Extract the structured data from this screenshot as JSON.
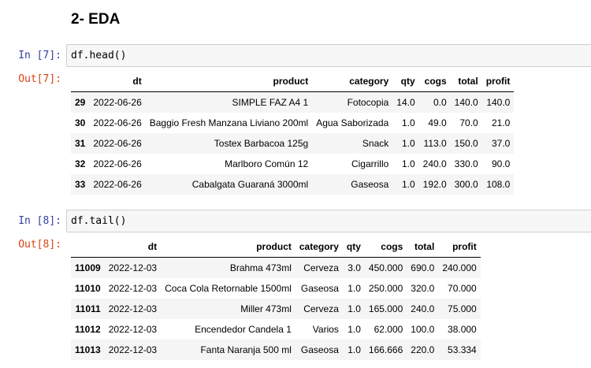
{
  "section_heading": "2- EDA",
  "cell1": {
    "in_prompt": "In [7]:",
    "code": "df.head()",
    "out_prompt": "Out[7]:",
    "columns": [
      "",
      "dt",
      "product",
      "category",
      "qty",
      "cogs",
      "total",
      "profit"
    ],
    "rows": [
      [
        "29",
        "2022-06-26",
        "SIMPLE FAZ A4 1",
        "Fotocopia",
        "14.0",
        "0.0",
        "140.0",
        "140.0"
      ],
      [
        "30",
        "2022-06-26",
        "Baggio Fresh Manzana Liviano 200ml",
        "Agua Saborizada",
        "1.0",
        "49.0",
        "70.0",
        "21.0"
      ],
      [
        "31",
        "2022-06-26",
        "Tostex Barbacoa 125g",
        "Snack",
        "1.0",
        "113.0",
        "150.0",
        "37.0"
      ],
      [
        "32",
        "2022-06-26",
        "Marlboro Común 12",
        "Cigarrillo",
        "1.0",
        "240.0",
        "330.0",
        "90.0"
      ],
      [
        "33",
        "2022-06-26",
        "Cabalgata Guaraná 3000ml",
        "Gaseosa",
        "1.0",
        "192.0",
        "300.0",
        "108.0"
      ]
    ]
  },
  "cell2": {
    "in_prompt": "In [8]:",
    "code": "df.tail()",
    "out_prompt": "Out[8]:",
    "columns": [
      "",
      "dt",
      "product",
      "category",
      "qty",
      "cogs",
      "total",
      "profit"
    ],
    "rows": [
      [
        "11009",
        "2022-12-03",
        "Brahma 473ml",
        "Cerveza",
        "3.0",
        "450.000",
        "690.0",
        "240.000"
      ],
      [
        "11010",
        "2022-12-03",
        "Coca Cola Retornable 1500ml",
        "Gaseosa",
        "1.0",
        "250.000",
        "320.0",
        "70.000"
      ],
      [
        "11011",
        "2022-12-03",
        "Miller 473ml",
        "Cerveza",
        "1.0",
        "165.000",
        "240.0",
        "75.000"
      ],
      [
        "11012",
        "2022-12-03",
        "Encendedor Candela 1",
        "Varios",
        "1.0",
        "62.000",
        "100.0",
        "38.000"
      ],
      [
        "11013",
        "2022-12-03",
        "Fanta Naranja 500 ml",
        "Gaseosa",
        "1.0",
        "166.666",
        "220.0",
        "53.334"
      ]
    ]
  }
}
